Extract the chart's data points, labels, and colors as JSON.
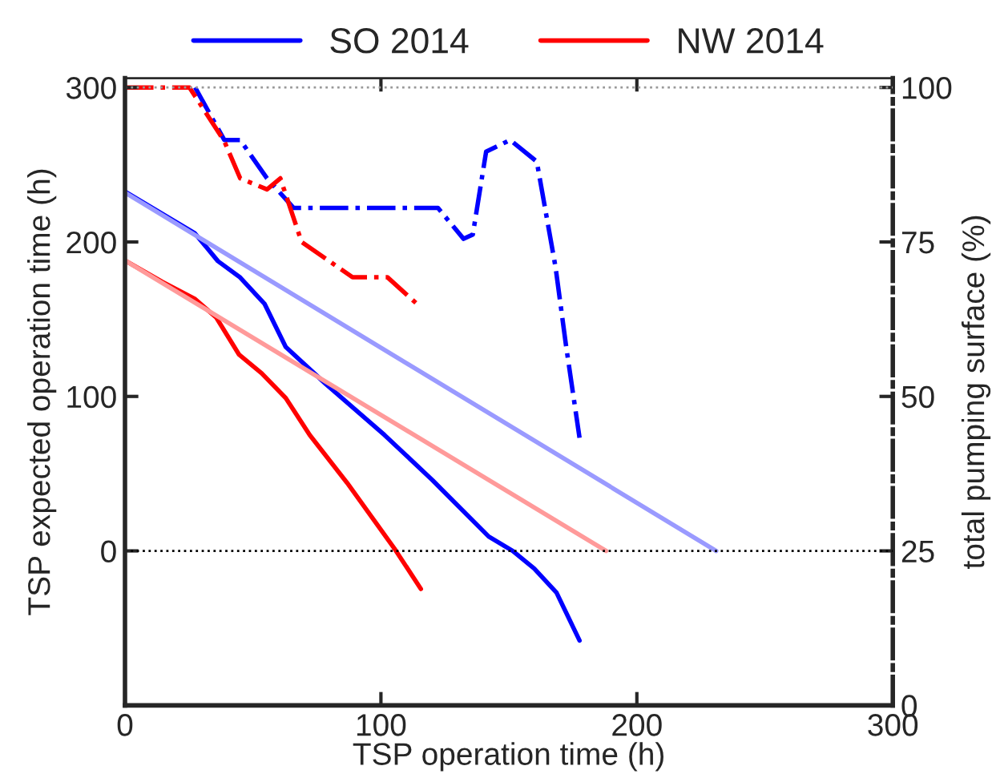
{
  "chart_data": {
    "type": "line",
    "xlabel": "TSP operation time (h)",
    "ylabel": "TSP expected operation time (h)",
    "y2label": "total pumping surface (%)",
    "xlim": [
      0,
      300
    ],
    "xticks": [
      0,
      100,
      200,
      300
    ],
    "ylim": [
      -100,
      306
    ],
    "yticks": [
      0,
      100,
      200,
      300
    ],
    "y2lim": [
      0,
      101.5
    ],
    "y2ticks": [
      0,
      25,
      50,
      75,
      100
    ],
    "legend": "top",
    "grid": false,
    "series": [
      {
        "name": "SO 2014",
        "color": "#0000ff",
        "x": [
          0,
          27.3,
          36.3,
          45,
          54.5,
          62.8,
          78.5,
          101.4,
          120.2,
          124.4,
          142.1,
          151.5,
          159.9,
          168.6,
          177.6
        ],
        "values": [
          232.6,
          205.6,
          187.6,
          177,
          160,
          132,
          108,
          75,
          45.7,
          38.7,
          9.3,
          0,
          -11.4,
          -27,
          -58
        ]
      },
      {
        "name": "NW 2014",
        "color": "#ff0000",
        "x": [
          0,
          14.8,
          27.4,
          35.7,
          44.6,
          53.4,
          62.8,
          72.2,
          86.8,
          105.6,
          115.6
        ],
        "values": [
          188,
          174,
          163,
          151,
          127,
          115,
          99,
          75,
          44,
          0.7,
          -24.6
        ]
      },
      {
        "color": "#9a9aff",
        "x": [
          0,
          231
        ],
        "values": [
          232,
          0
        ]
      },
      {
        "color": "#ff9a9a",
        "x": [
          0,
          188
        ],
        "values": [
          188,
          0
        ]
      },
      {
        "color": "#0000ff",
        "axis": "y2",
        "line_style": "dashdot",
        "x": [
          27.4,
          38.8,
          45,
          55.5,
          65.9,
          122.3,
          132.3,
          135.9,
          141.1,
          150.5,
          160.9,
          168.2,
          172.4,
          177.6
        ],
        "values": [
          100,
          91.5,
          91.5,
          85.3,
          80.5,
          80.5,
          75.5,
          76.2,
          89.6,
          91.5,
          88,
          71,
          58,
          43.3
        ]
      },
      {
        "color": "#ff0000",
        "axis": "y2",
        "line_style": "dashdot",
        "x": [
          0,
          25.2,
          38.8,
          45,
          55.5,
          60.7,
          69,
          88.9,
          102.5,
          114
        ],
        "values": [
          100,
          100,
          91.3,
          85.3,
          83.5,
          85.3,
          75,
          69.3,
          69.3,
          65
        ]
      }
    ],
    "ref_lines": [
      {
        "axis": "y",
        "value": 0,
        "color": "#000000",
        "line_style": "dotted"
      },
      {
        "axis": "y",
        "value": 300,
        "color": "#999999",
        "line_style": "dotted"
      }
    ]
  }
}
